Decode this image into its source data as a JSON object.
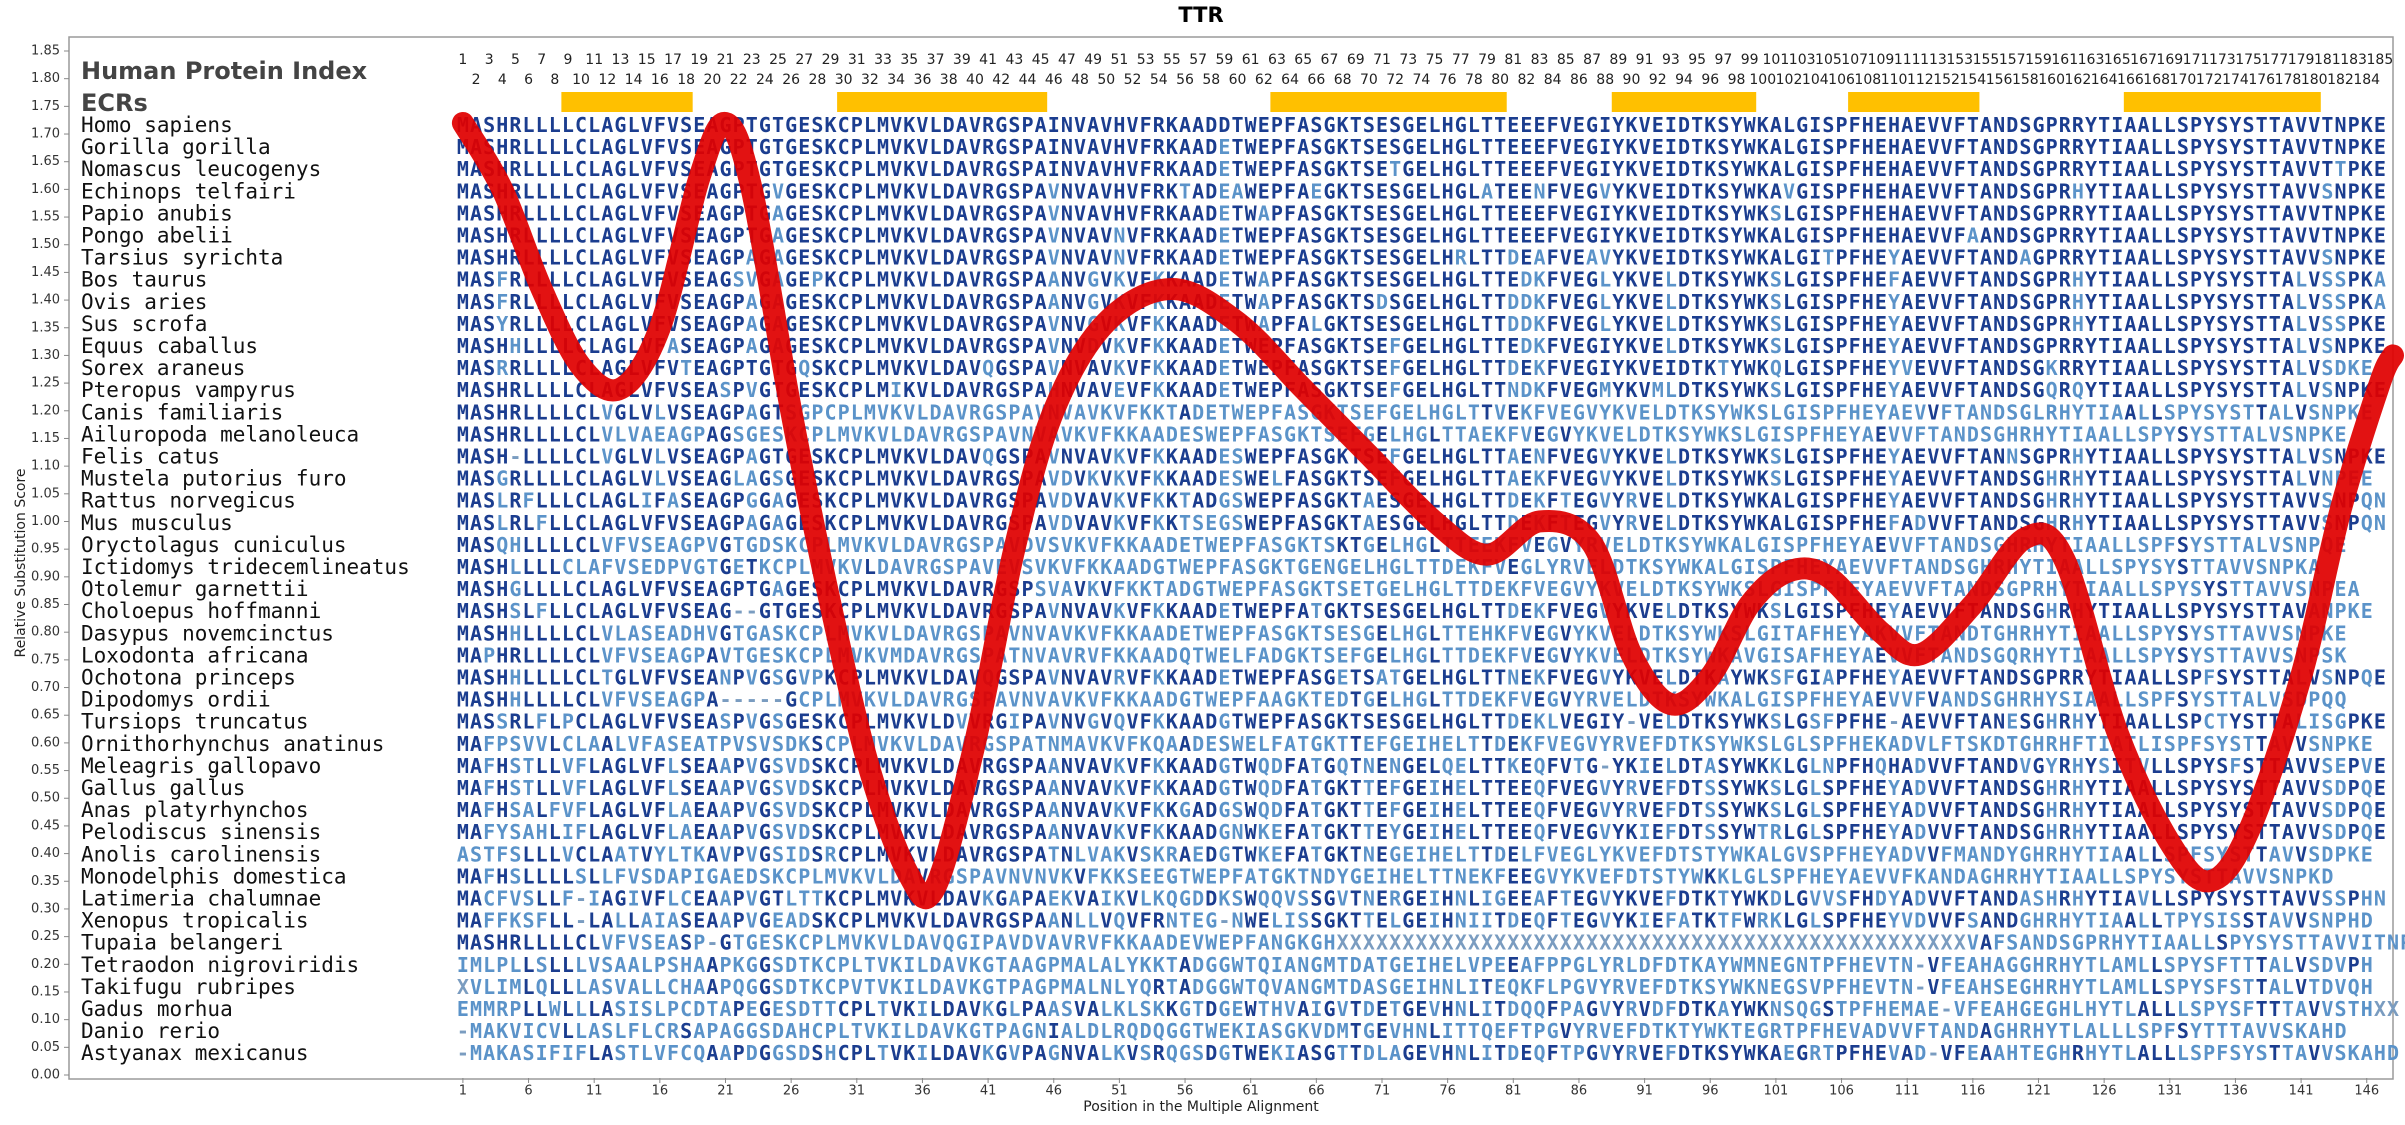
{
  "chart_data": {
    "type": "line",
    "title": "TTR",
    "y_label": "Relative Substitution Score",
    "x_label": "Position in the Multiple Alignment",
    "xlim": [
      -29,
      148
    ],
    "ylim": [
      0,
      1.85
    ],
    "yticks": [
      {
        "value": 0,
        "label": "0.00"
      },
      {
        "value": 0.05,
        "label": "0.05"
      },
      {
        "value": 0.1,
        "label": "0.10"
      },
      {
        "value": 0.15,
        "label": "0.15"
      },
      {
        "value": 0.2,
        "label": "0.20"
      },
      {
        "value": 0.25,
        "label": "0.25"
      },
      {
        "value": 0.3,
        "label": "0.30"
      },
      {
        "value": 0.35,
        "label": "0.35"
      },
      {
        "value": 0.4,
        "label": "0.40"
      },
      {
        "value": 0.45,
        "label": "0.45"
      },
      {
        "value": 0.5,
        "label": "0.50"
      },
      {
        "value": 0.55,
        "label": "0.55"
      },
      {
        "value": 0.6,
        "label": "0.60"
      },
      {
        "value": 0.65,
        "label": "0.65"
      },
      {
        "value": 0.7,
        "label": "0.70"
      },
      {
        "value": 0.75,
        "label": "0.75"
      },
      {
        "value": 0.8,
        "label": "0.80"
      },
      {
        "value": 0.85,
        "label": "0.85"
      },
      {
        "value": 0.9,
        "label": "0.90"
      },
      {
        "value": 0.95,
        "label": "0.95"
      },
      {
        "value": 1,
        "label": "1.00"
      },
      {
        "value": 1.05,
        "label": "1.05"
      },
      {
        "value": 1.1,
        "label": "1.10"
      },
      {
        "value": 1.15,
        "label": "1.15"
      },
      {
        "value": 1.2,
        "label": "1.20"
      },
      {
        "value": 1.25,
        "label": "1.25"
      },
      {
        "value": 1.3,
        "label": "1.30"
      },
      {
        "value": 1.35,
        "label": "1.35"
      },
      {
        "value": 1.4,
        "label": "1.40"
      },
      {
        "value": 1.45,
        "label": "1.45"
      },
      {
        "value": 1.5,
        "label": "1.50"
      },
      {
        "value": 1.55,
        "label": "1.55"
      },
      {
        "value": 1.6,
        "label": "1.60"
      },
      {
        "value": 1.65,
        "label": "1.65"
      },
      {
        "value": 1.7,
        "label": "1.70"
      },
      {
        "value": 1.75,
        "label": "1.75"
      },
      {
        "value": 1.8,
        "label": "1.80"
      },
      {
        "value": 1.85,
        "label": "1.85"
      }
    ],
    "xticks": [
      1,
      6,
      11,
      16,
      21,
      26,
      31,
      36,
      41,
      46,
      51,
      56,
      61,
      66,
      71,
      76,
      81,
      86,
      91,
      96,
      101,
      106,
      111,
      116,
      121,
      126,
      131,
      136,
      141,
      146
    ],
    "x": [
      1,
      4,
      7,
      10,
      13,
      16,
      19,
      21,
      23,
      26,
      29,
      32,
      35,
      37,
      40,
      43,
      46,
      50,
      55,
      60,
      65,
      70,
      75,
      79,
      83,
      87,
      90,
      93,
      96,
      99,
      102,
      105,
      109,
      112,
      116,
      120,
      123,
      127,
      131,
      134,
      137,
      141,
      144,
      147,
      148
    ],
    "values": [
      1.72,
      1.6,
      1.42,
      1.28,
      1.24,
      1.35,
      1.62,
      1.72,
      1.6,
      1.2,
      0.85,
      0.55,
      0.36,
      0.34,
      0.6,
      0.95,
      1.2,
      1.36,
      1.42,
      1.36,
      1.24,
      1.12,
      1.0,
      0.94,
      1.0,
      0.96,
      0.76,
      0.67,
      0.72,
      0.85,
      0.91,
      0.9,
      0.8,
      0.76,
      0.85,
      0.97,
      0.93,
      0.62,
      0.42,
      0.35,
      0.44,
      0.72,
      1.02,
      1.25,
      1.3
    ],
    "color": "#e00000",
    "alignment": {
      "index_label": "Human Protein Index",
      "index_numbers": [
        1,
        2,
        3,
        4,
        5,
        6,
        7,
        8,
        9,
        10,
        11,
        12,
        13,
        14,
        15,
        16,
        17,
        18,
        19,
        20,
        21,
        22,
        23,
        24,
        25,
        26,
        27,
        28,
        29,
        30,
        31,
        32,
        33,
        34,
        35,
        36,
        37,
        38,
        39,
        40,
        41,
        42,
        43,
        44,
        45,
        46,
        47,
        48,
        49,
        50,
        51,
        52,
        53,
        54,
        55,
        56,
        57,
        58,
        59,
        60,
        61,
        62,
        63,
        64,
        65,
        66,
        67,
        68,
        69,
        70,
        71,
        72,
        73,
        74,
        75,
        76,
        77,
        78,
        79,
        80,
        81,
        82,
        83,
        84,
        85,
        86,
        87,
        88,
        89,
        90,
        91,
        92,
        93,
        94,
        95,
        96,
        97,
        98,
        99,
        100,
        101,
        102,
        103,
        104,
        105,
        106,
        107,
        108,
        109,
        110,
        111,
        112,
        113,
        152,
        153,
        154,
        155,
        156,
        157,
        158,
        159,
        160,
        161,
        162,
        163,
        164,
        165,
        166,
        167,
        168,
        169,
        170,
        171,
        172,
        173,
        174,
        175,
        176,
        177,
        178,
        179,
        180,
        181,
        182,
        183,
        184,
        185
      ],
      "ecr_label": "ECRs",
      "ecr_color": "#ffc000",
      "ecrs": [
        [
          9,
          18
        ],
        [
          30,
          45
        ],
        [
          63,
          80
        ],
        [
          89,
          99
        ],
        [
          107,
          116
        ],
        [
          128,
          142
        ]
      ],
      "rows": [
        {
          "species": "Homo sapiens",
          "sequence": "MASHRLLLLCLAGLVFVSEAGPTGTGESKCPLMVKVLDAVRGSPAINVAVHVFRKAADDTWEPFASGKTSESGELHGLTTEEEFVEGIYKVEIDTKSYWKALGISPFHEHAEVVFTANDSGPRRYTIAALLSPYSYSTTAVVTNPKE"
        },
        {
          "species": "Gorilla gorilla",
          "sequence": "MASHRLLLLCLAGLVFVSEAGPTGTGESKCPLMVKVLDAVRGSPAINVAVHVFRKAADETWEPFASGKTSESGELHGLTTEEEFVEGIYKVEIDTKSYWKALGISPFHEHAEVVFTANDSGPRRYTIAALLSPYSYSTTAVVTNPKE"
        },
        {
          "species": "Nomascus leucogenys",
          "sequence": "MASHRLLLLCLAGLVFVSEAGPTGTGESKCPLMVKVLDAVRGSPAINVAVHVFRKAADETWEPFASGKTSETGELHGLTTEEEFVEGIYKVEIDTKSYWKALGISPFHEHAEVVFTANDSGPRRYTIAALLSPYSYSTTAVVTTPKE"
        },
        {
          "species": "Echinops telfairi",
          "sequence": "MASHRLLLLCLAGLVFVSEAGPTGVGESKCPLMVKVLDAVRGSPAVNVAVHVFRKTADEAWEPFAEGKTSESGELHGLATEENFVEGVYKVEIDTKSYWKAVGISPFHEHAEVVFTANDSGPRHYTIAALLSPYSYSTTAVVSNPKE"
        },
        {
          "species": "Papio anubis",
          "sequence": "MASHRLLLLCLAGLVFVSEAGPTGAGESKCPLMVKVLDAVRGSPAVNVAVHVFRKAADETWAPFASGKTSESGELHGLTTEEEFVEGIYKVEIDTKSYWKSLGISPFHEHAEVVFTANDSGPRRYTIAALLSPYSYSTTAVVTNPKE"
        },
        {
          "species": "Pongo abelii",
          "sequence": "MASHRLLLLCLAGLVFVSEAGPTGAGESKCPLMVKVLDAVRGSPAVNVAVNVFRKAADETWEPFASGKTSESGELHGLTTEEEFVEGIYKVEIDTKSYWKALGISPFHEHAEVVFAANDSGPRRYTIAALLSPYSYSTTAVVTNPKE"
        },
        {
          "species": "Tarsius syrichta",
          "sequence": "MASHRLLLLCLAGLVFVSEAGPAGAGESKCPLMVKVLDAVRGSPAVNVAVNVFRKAADETWEPFASGKTSESGELHRLTTDEAFVEAVYKVEIDTKSYWKALGITPFHEYAEVVFTANDAGPRRYTIAALLSPYSYSTTAVVSNPKE"
        },
        {
          "species": "Bos taurus",
          "sequence": "MASFRLLLLCLAGLVFVSEAGSVGAGEPKCPLMVKVLDAVRGSPAANVGVKVFKKAADETWAPFASGKTSESGELHGLTTEDKFVEGLYKVELDTKSYWKSLGISPFHEFAEVVFTANDSGPRHYTIAALLSPYSYSTTALVSSPKA"
        },
        {
          "species": "Ovis aries",
          "sequence": "MASFRLLLLCLAGLVFVSEAGPAGAGESKCPLMVKVLDAVRGSPAANVGVKVFKKAADETWAPFASGKTSDSGELHGLTTDDKFVEGLYKVELDTKSYWKSLGISPFHEYAEVVFTANDSGPRHYTIAALLSPYSYSTTALVSSPKA"
        },
        {
          "species": "Sus scrofa",
          "sequence": "MASYRLLLLCLAGLVFVSEAGPAGAGESKCPLMVKVLDAVRGSPAVNVGVKVFKKAADETWAPFALGKTSESGELHGLTTDDKFVEGLYKVELDTKSYWKSLGISPFHEYAEVVFTANDSGPRHYTIAALLSPYSYSTTALVSSPKE"
        },
        {
          "species": "Equus caballus",
          "sequence": "MASHHLLLLCLAGLVFASEAGPAGAGESKCPLMVKVLDAVRGSPAVNVDVKVFKKAADETWEPFASGKTSEFGELHGLTTEDKFVEGIYKVELDTKSYWKSLGISPFHEYAEVVFTANDSGPRRYTIAALLSPYSYSTTALVSNPKE"
        },
        {
          "species": "Sorex araneus",
          "sequence": "MASRRLLLLCLAGLVFVTEAGPTGTGQSKCPLMVKVLDAVQGSPAVNVAVKVFKKAADETWEPFASGKTSEFGELHGLTTDEKFVEGIYKVEIDTKTYWKQLGISPFHEYVEVVFTANDSGKRRYTIAALLSPYSYSTTALVSDKE"
        },
        {
          "species": "Pteropus vampyrus",
          "sequence": "MASHRLLLLCLAGLVFVSEASPVGTGESKCPLMIKVLDAVRGSPAHNVAVEVFKKAADETWEPFASGKTSEFGELHGLTTNDKFVEGMYKVMLDTKSYWKSLGISPFHEYAEVVFTANDSGQRQYTIAALLSPYSYSTTALVSNPKE"
        },
        {
          "species": "Canis familiaris",
          "sequence": "MASHRLLLLCLVGLVLVSEAGPAGTSGPCPLMVKVLDAVRGSPAVNVAVKVFKKTADETWEPFASGKTSEFGELHGLTTVEKFVEGVYKVELDTKSYWKSLGISPFHEYAEVVFTANDSGLRHYTIAALLSPYSYSTTALVSNPKE"
        },
        {
          "species": "Ailuropoda melanoleuca",
          "sequence": "MASHRLLLLCLVLVAEAGPAGSGESKCPLMVKVLDAVRGSPAVNVAVKVFKKAADESWEPFASGKTSEFGELHGLTTAEKFVEGVYKVELDTKSYWKSLGISPFHEYAEVVFTANDSGHRHYTIAALLSPYSYSTTALVSNPKE"
        },
        {
          "species": "Felis catus",
          "sequence": "MASH-LLLLCLVGLVLVSEAGPAGTGESKCPLMVKVLDAVQGSPAVNVAVKVFKKAADESWEPFASGKTSEFGELHGLTTAENFVEGVYKVELDTKSYWKSLGISPFHEYAEVVFTANNSGPRHYTIAALLSPYSYSTTALVSNPKE"
        },
        {
          "species": "Mustela putorius furo",
          "sequence": "MASGRLLLLCLAGLVLVSEAGLAGSGESKCPLMVKVLDAVRGSPAVDVKVKVFKKAADESWELFASGKTSEFGELHGLTTAEKFVEGVYKVELDTKSYWKSLGISPFHEYAEVVFTANDSGHRHYTIAALLSPYSYSTTALVNPEE"
        },
        {
          "species": "Rattus norvegicus",
          "sequence": "MASLRFLLLCLAGLIFASEAGPGGAGESKCPLMVKVLDAVRGSPAVDVAVKVFKKTADGSWEPFASGKTAESGELHGLTTDEKFTEGVYRVELDTKSYWKALGISPFHEYAEVVFTANDSGHRHYTIAALLSPYSYSTTAVVSNPQN"
        },
        {
          "species": "Mus musculus",
          "sequence": "MASLRLFLLCLAGLVFVSEAGPAGAGESKCPLMVKVLDAVRGSPAVDVAVKVFKKTSEGSWEPFASGKTAESGELHGLTTDEKFTEGVYRVELDTKSYWKALGISPFHEFADVVFTANDSGHRHYTIAALLSPYSYSTTAVVSNPQN"
        },
        {
          "species": "Oryctolagus cuniculus",
          "sequence": "MASQHLLLLCLVFVSEAGPVGTGDSKCPLMVKVLDAVRGSPAVDVSVKVFKKAADETWEPFASGKTSKTGELHGLTTEEKFVEGVYRVELDTKSYWKALGISPFHEYAEVVFTANDSGHRHYTIAALLSPFSYSTTALVSNPQE"
        },
        {
          "species": "Ictidomys tridecemlineatus",
          "sequence": "MASHLLLLCLAFVSEDPVGTGETKCPLMVKVLDAVRGSPAVEVSVKVFKKAADGTWEPFASGKTGENGELHGLTTDEKFVEGLYRVELDTKSYWKALGISPFHEYAEVVFTANDSGHRHYTIAALLSPYSYSTTAVVSNPKA"
        },
        {
          "species": "Otolemur garnettii",
          "sequence": "MASHGLLLLCLAGLVFVSEAGPTGAGESKCPLMVKVLDAVRGSPSVAVKVFKKTADGTWEPFASGKTSETGELHGLTTDEKFVEGVYKVELDTKSYWKSLGISPFHEYAEVVFTANDSGPRHYTIAALLSPYSYSTTAVVSNPEA"
        },
        {
          "species": "Choloepus hoffmanni",
          "sequence": "MASHSLFLLCLAGLVFVSEAG--GTGESKCPLMVKVLDAVRGSPAVNVAVKVFKKAADETWEPFATGKTSESGELHGLTTDEKFVEGVYKVELDTKSYWKSLGISPFHEYAEVVFTANDSGHRHYTIAALLSPYSYSTTAVANPKE"
        },
        {
          "species": "Dasypus novemcinctus",
          "sequence": "MASHHLLLLCLVLASEADHVGTGASKCPLMVKVLDAVRGSPAVNVAVKVFKKAADETWEPFASGKTSESGELHGLTTEHKFVEGVYKVELDTKSYWKSLGITAFHEYAKVVFTANDTGHRHYTIAALLSPYSYSTTAVVSNPKE"
        },
        {
          "species": "Loxodonta africana",
          "sequence": "MAPHRLLLLCLVFVSEAGPAVTGESKCPLMVKVMDAVRGSPATNVAVRVFKKAADQTWELFADGKTSEFGELHGLTTDEKFVEGVYKVELDTKSYWKAVGISAFHEYAEVVFTANDSGQRHYTIAALLSPYSYSTTAVVSNPSK"
        },
        {
          "species": "Ochotona princeps",
          "sequence": "MASHHLLLLCLTGLVFVSEANPVGSGVPKCPLMVKVLDAVQGSPAVNVAVRVFKKAADETWEPFASGETSATGELHGLTTNEKFVEGVYKVELDTKAYWKSFGIAPFHEYAEVVFTANDSGPRRYTIAALLSPFSYSTTALVSNPQE"
        },
        {
          "species": "Dipodomys ordii",
          "sequence": "MASHHLLLLCLVFVSEAGPA-----GCPLMVKVLDAVRGSPAVNVAVKVFKKAADGTWEPFAAGKTEDTGELHGLTTDEKFVEGVYRVELDTKSYWKALGISPFHEYAEVVFVANDSGHRHYSIAALLSPFSYSTTALVSDPQQ"
        },
        {
          "species": "Tursiops truncatus",
          "sequence": "MASSRLFLPCLAGLVFVSEASPVGSGESKCPLMVKVLDVVRGIPAVNVGVQVFKKAADGTWEPFASGKTSESGELHGLTTDEKLVEGIY-VELDTKSYWKSLGSFPFHE-AEVVFTANESGHRHYTIAALLSPCTYSTTALISGPKE"
        },
        {
          "species": "Ornithorhynchus anatinus",
          "sequence": "MAFPSVVLCLAALVFASEATPVSVSDKSCPLMVKVLDAVRGSPATNMAVKVFKQAADESWELFATGKTTEFGEIHELTTDEKFVEGVYRVEFDTKSYWKSLGLSPFHEKADVLFTSKDTGHRHFTIATLISPFSYSTTAVVSNPKE"
        },
        {
          "species": "Meleagris gallopavo",
          "sequence": "MAFHSTLLVFLAGLVFLSEAAPVGSVDSKCPLMVKVLDAVRGSPAANVAVKVFKKAADGTWQDFATGQTNENGELQELTTKEQFVTG-YKIELDTASYWKKLGLNPFHQHADVVFTANDVGYRHYSITVLLSPYSFSTTAVVSEPVE"
        },
        {
          "species": "Gallus gallus",
          "sequence": "MAFHSTLLVFLAGLVFLSEAAPVGSVDSKCPLMVKVLDAVRGSPAANVAVKVFKKAADGTWQDFATGKTTEFGEIHELTTEEQFVEGVYRVEFDTSSYWKSLGLSPFHEYADVVFTANDSGHRHYTIAALLSPYSYSTTAVVSDPQE"
        },
        {
          "species": "Anas platyrhynchos",
          "sequence": "MAFHSALFVFLAGLVFLAEAAPVGSVDSKCPLMVKVLDAVRGSPAANVAVKVFKKGADGSWQDFATGKTTEFGEIHELTTEEQFVEGVYRVEFDTSSYWKSLGLSPFHEYADVVFTANDSGHRHYTIAALLSPYSYSTTAVVSDPQE"
        },
        {
          "species": "Pelodiscus sinensis",
          "sequence": "MAFYSAHLIFLAGLVFLAEAAPVGSVDSKCPLMVKVLDAVRGSPAANVAVKVFKKAADGNWKEFATGKTTEYGEIHELTTEEQFVEGVYKIEFDTSSYWTRLGLSPFHEYADVVFTANDSGHRHYTIAALLSPYSYSTTAVVSDPQE"
        },
        {
          "species": "Anolis carolinensis",
          "sequence": "ASTFSLLLVCLAATVYLTKAVPVGSIDSRCPLMVKVLDAVRGSPATNLVAKVSKRAEDGTWKEFATGKTNEGEIHELTTDELFVEGLYKVEFDTSTYWKALGVSPFHEYADVVFMANDYGHRHYTIAALLSPFSYSTTAVVSDPKE"
        },
        {
          "species": "Monodelphis domestica",
          "sequence": "MAFHSLLLLSLLFVSDAPIGAEDSKCPLMVKVLDAVRGSPAVNVNVKVFKKSEEGTWEPFATGKTNDYGEIHELTTNEKFEEGVYKVEFDTSTYWKKLGLSPFHEYAEVVFKANDAGHRHYTIAALLSPYSYSTTAVVSNPKD"
        },
        {
          "species": "Latimeria chalumnae",
          "sequence": "MACFVSLLF-IAGIVFLCEAAPVGTLTTKCPLMVKVLDAVKGAPAEKVAIKVLKQGDDKSWQQVSSGVTNERGEIHNLIGEEAFTEGVYKVEFDTKTYWKDLGVVSFHDYADVVFTANDASHRHYTIAVLLSPYSYSTTAVVSSPHN"
        },
        {
          "species": "Xenopus tropicalis",
          "sequence": "MAFFKSFLL-LALLAIASEAAPVGEADSKCPLMVKVLDAVRGSPAANLLVQVFRNTEG-NWELISSGKTTELGEIHNIITDEQFTEGVYKIEFATKTFWRKLGLSPFHEYVDVVFSANDGHRHYTIAALLTPYSISSTAVVSNPHD"
        },
        {
          "species": "Tupaia belangeri",
          "sequence": "MASHRLLLLCLVFVSEASP-GTGESKCPLMVKVLDAVQGIPAVDVAVRVFKKAADEVWEPFANGKGHXXXXXXXXXXXXXXXXXXXXXXXXXXXXXXXXXXXXXXXXXXXXXXXXVAFSANDSGPRHYTIAALLSPYSYSTTAVVITNPKS"
        },
        {
          "species": "Tetraodon nigroviridis",
          "sequence": "IMLPLLSLLLVSAALPSHAAPKGGSDTKCPLTVKILDAVKGTAAGPMALALYKKTADGGWTQIANGMTDATGEIHELVPEEAFPPGLYRLDFDTKAYWMNEGNTPFHEVTN-VFEAHAGGHRHYTLAMLLSPYSFTTTALVSDVPH"
        },
        {
          "species": "Takifugu rubripes",
          "sequence": "XVLIMLQLLLASVALLCHAAPQGGSDTKCPVTVKILDAVKGTPAGPMALNLYQRTADGGWTQVANGMTDASGEIHNLITEQKFLPGVYRVEFDTKSYWKNEGSVPFHEVTN-VFEAHSEGHRHYTLAMLLSPYSFSTTALVTDVQH"
        },
        {
          "species": "Gadus morhua",
          "sequence": "EMMRPLLWLLLASISLPCDTAPEGESDTTCPLTVKILDAVKGLPAASVALKLSKKGTDGEWTHVAIGVTDETGEVHNLITDQQFPAGVYRVDFDTKAYWKNSQGSTPFHEMAE-VFEAHGEGHLHYTLALLLSPYSFTTTAVVSTHXX"
        },
        {
          "species": "Danio rerio",
          "sequence": "-MAKVICVLLASLFLCRSAPAGGSDAHCPLTVKILDAVKGTPAGNIALDLRQDQGGTWEKIASGKVDMTGEVHNLITTQEFTPGVYRVEFDTKTYWKTEGRTPFHEVADVVFTANDAGHRHYTLALLLSPFSYTTTAVVSKAHD"
        },
        {
          "species": "Astyanax mexicanus",
          "sequence": "-MAKASIFIFLASTLVFCQAAPDGGSDSHCPLTVKILDAVKGVPAGNVALKVSRQGSDGTWEKIASGTTDLAGEVHNLITDEQFTPGVYRVEFDTKSYWKAEGRTPFHEVAD-VFEAAHTEGHRHYTLALLLSPFSYSTTAVVSKAHD"
        }
      ]
    }
  }
}
